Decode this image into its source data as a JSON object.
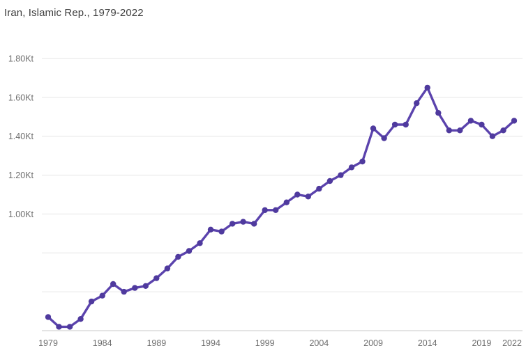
{
  "chart_data": {
    "type": "line",
    "title": "Iran, Islamic Rep., 1979-2022",
    "unit_suffix": "Kt",
    "x": [
      1979,
      1980,
      1981,
      1982,
      1983,
      1984,
      1985,
      1986,
      1987,
      1988,
      1989,
      1990,
      1991,
      1992,
      1993,
      1994,
      1995,
      1996,
      1997,
      1998,
      1999,
      2000,
      2001,
      2002,
      2003,
      2004,
      2005,
      2006,
      2007,
      2008,
      2009,
      2010,
      2011,
      2012,
      2013,
      2014,
      2015,
      2016,
      2017,
      2018,
      2019,
      2020,
      2021,
      2022
    ],
    "values": [
      0.47,
      0.42,
      0.42,
      0.46,
      0.55,
      0.58,
      0.64,
      0.6,
      0.62,
      0.63,
      0.67,
      0.72,
      0.78,
      0.81,
      0.85,
      0.92,
      0.91,
      0.95,
      0.96,
      0.95,
      1.02,
      1.02,
      1.06,
      1.1,
      1.09,
      1.13,
      1.17,
      1.2,
      1.24,
      1.27,
      1.44,
      1.39,
      1.46,
      1.46,
      1.57,
      1.65,
      1.52,
      1.43,
      1.43,
      1.48,
      1.46,
      1.4,
      1.43,
      1.48
    ],
    "x_ticks": [
      1979,
      1984,
      1989,
      1994,
      1999,
      2004,
      2009,
      2014,
      2019,
      2022
    ],
    "y_ticks": [
      {
        "value": 1.8,
        "label": "1.80Kt"
      },
      {
        "value": 1.6,
        "label": "1.60Kt"
      },
      {
        "value": 1.4,
        "label": "1.40Kt"
      },
      {
        "value": 1.2,
        "label": "1.20Kt"
      },
      {
        "value": 1.0,
        "label": "1.00Kt"
      },
      {
        "value": 0.8,
        "label": ""
      },
      {
        "value": 0.6,
        "label": ""
      }
    ],
    "xlim": [
      1979,
      2022
    ],
    "ylim": [
      0.4,
      1.87
    ],
    "grid": true,
    "legend": false,
    "colors": {
      "line": "#5b43ad",
      "point": "#4f3a9e",
      "grid": "#e6e6e6",
      "axis_line": "#c9c9c9",
      "tick_label": "#6e6e6e",
      "title": "#3f3f3f",
      "background": "#ffffff"
    }
  }
}
